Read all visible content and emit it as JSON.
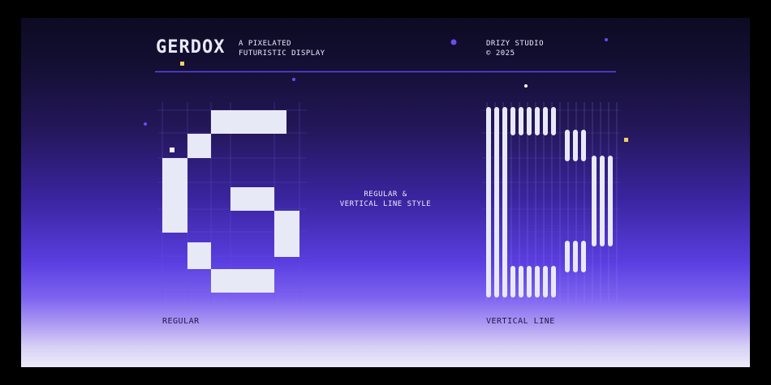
{
  "brand": {
    "name": "GERDOX"
  },
  "tagline": [
    "A PIXELATED",
    "FUTURISTIC DISPLAY"
  ],
  "studio": {
    "name": "DRIZY STUDIO",
    "copyright": "© 2025"
  },
  "center_text": [
    "REGULAR &",
    "VERTICAL LINE STYLE"
  ],
  "captions": {
    "left": "REGULAR",
    "right": "VERTICAL LINE"
  },
  "colors": {
    "accent_line": "#5a46e6",
    "glyph": "#e8e9f6",
    "dot_purple": "#6a4cf0",
    "dot_yellow": "#f2cf6a",
    "grid": "#6a58d8"
  }
}
